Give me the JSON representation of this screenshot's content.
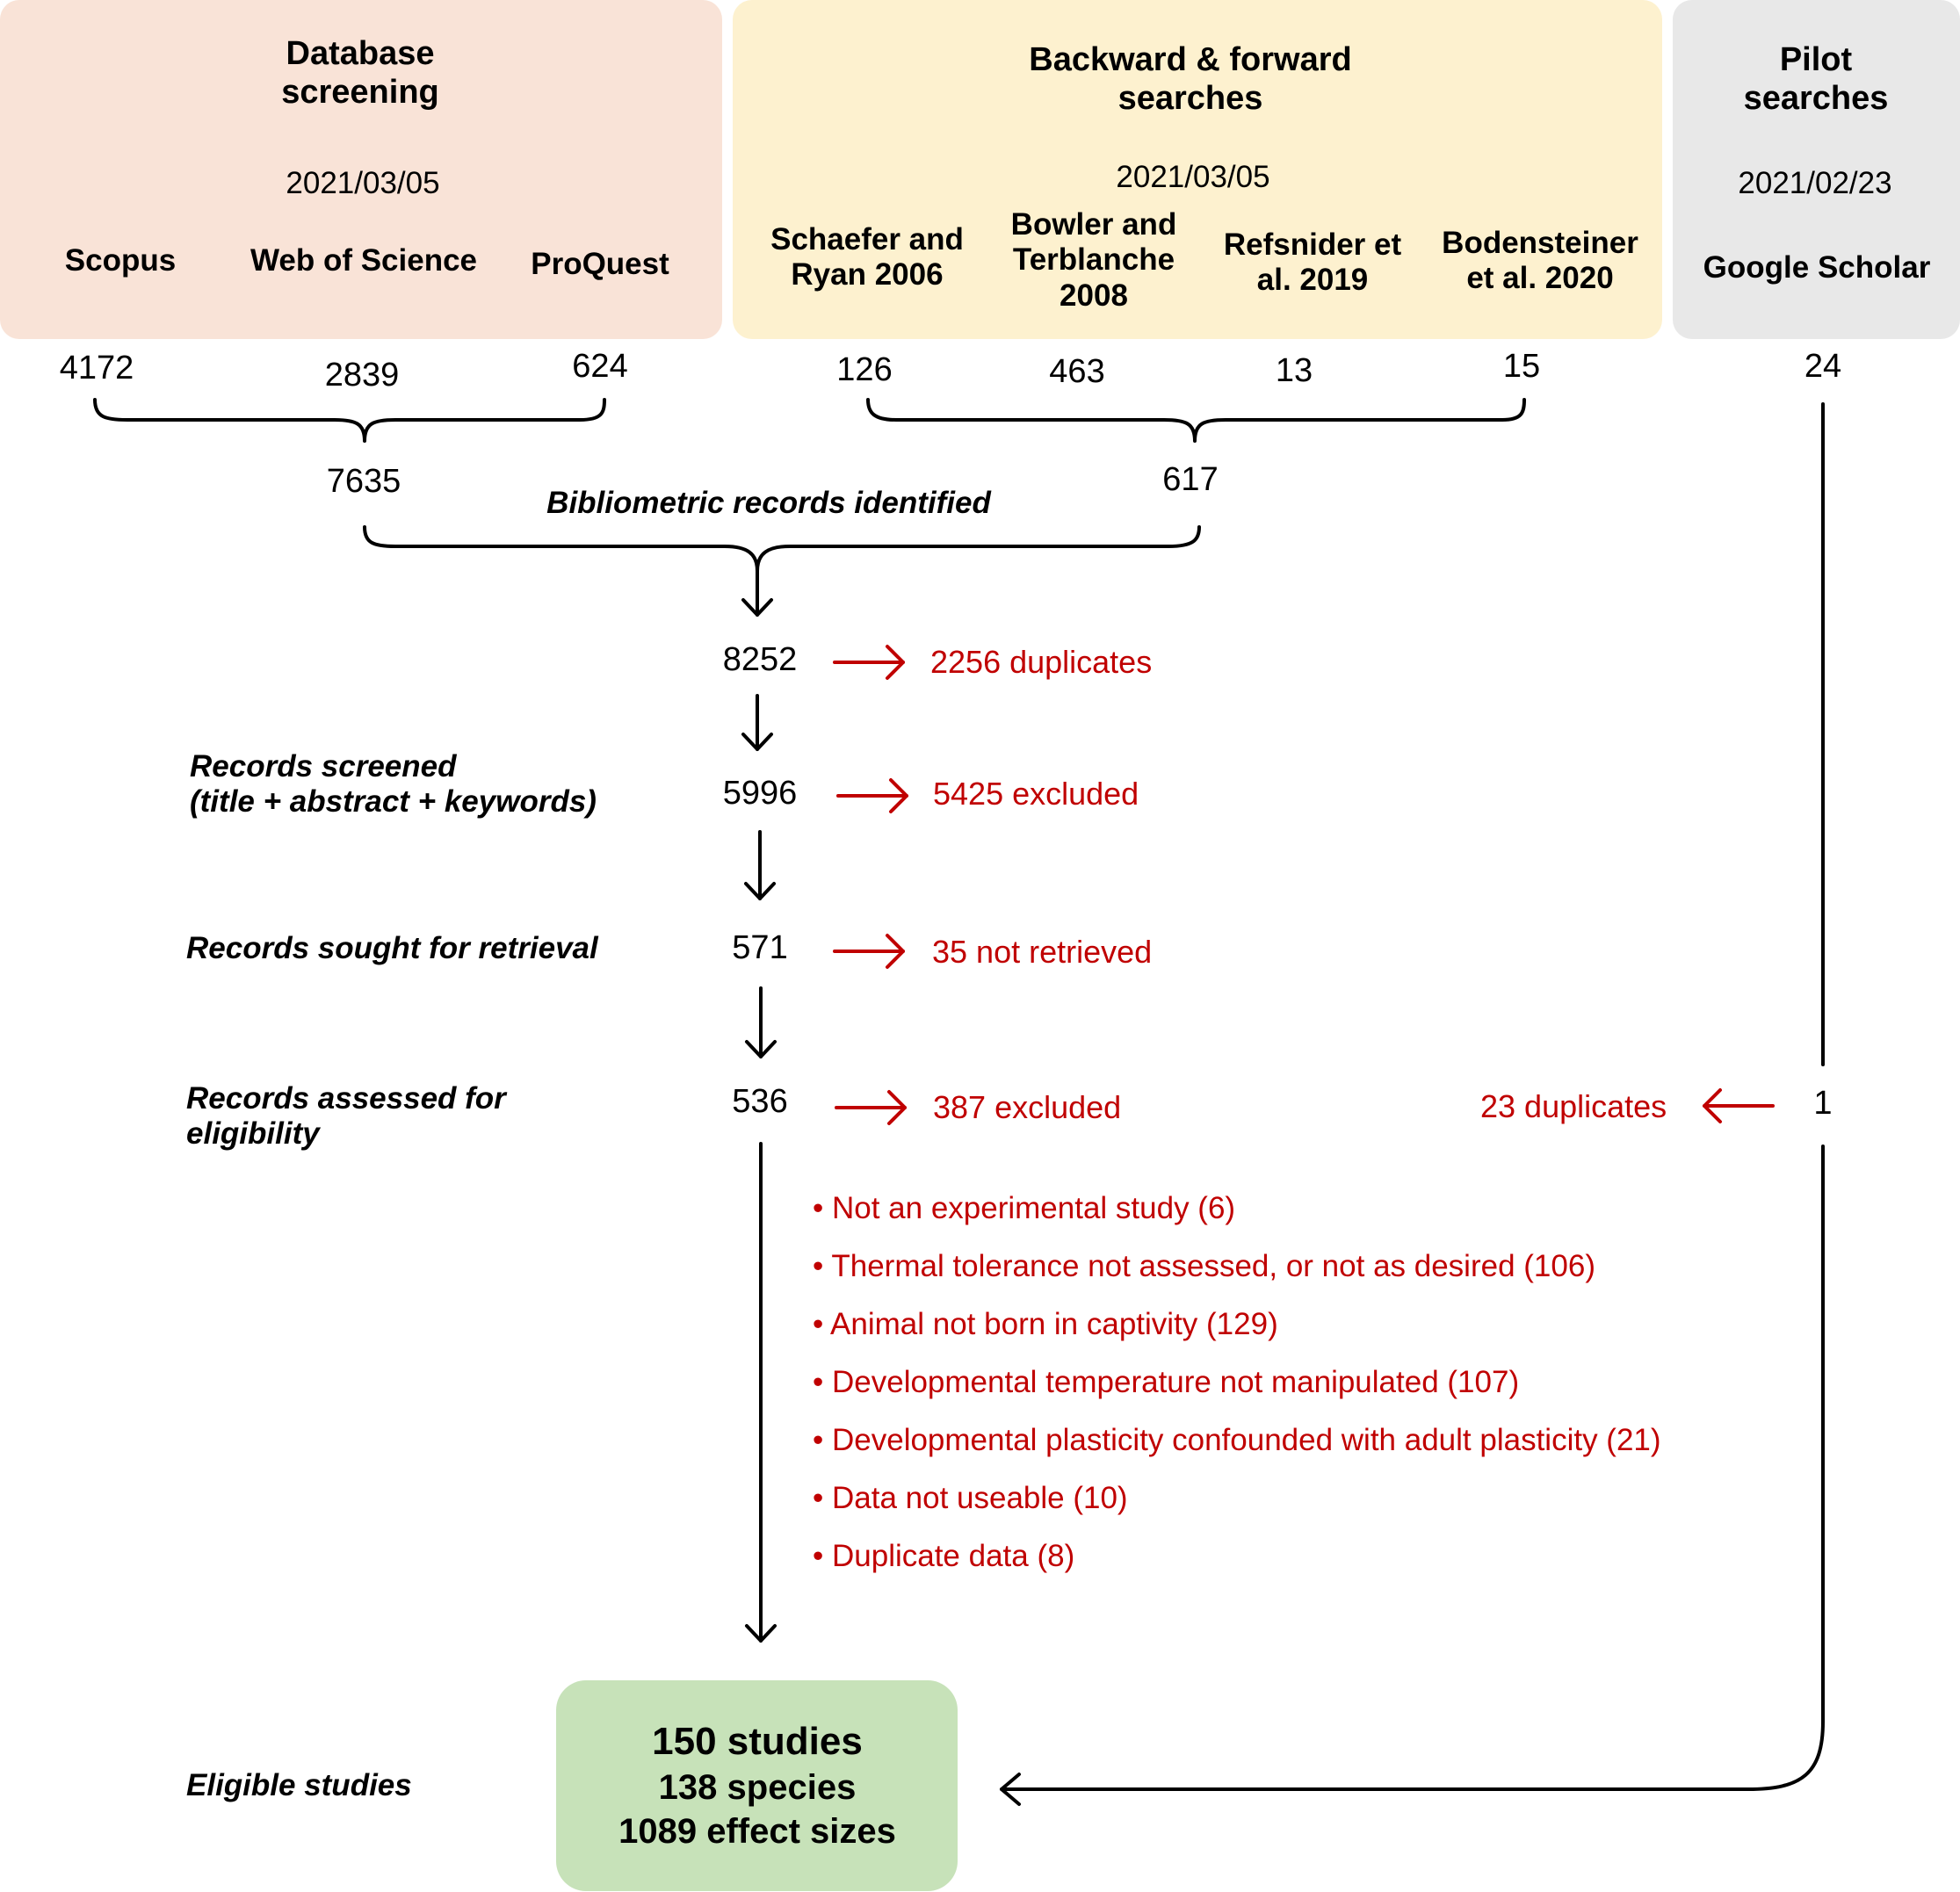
{
  "database": {
    "title": "Database screening",
    "title_line1": "Database",
    "title_line2": "screening",
    "date": "2021/03/05",
    "sources": [
      {
        "name": "Scopus",
        "count": "4172"
      },
      {
        "name": "Web of Science",
        "count": "2839"
      },
      {
        "name": "ProQuest",
        "count": "624"
      }
    ],
    "total": "7635"
  },
  "backward_forward": {
    "title": "Backward & forward searches",
    "title_line1": "Backward & forward",
    "title_line2": "searches",
    "date": "2021/03/05",
    "sources": [
      {
        "name": "Schaefer and Ryan 2006",
        "line1": "Schaefer and",
        "line2": "Ryan 2006",
        "count": "126"
      },
      {
        "name": "Bowler and Terblanche 2008",
        "line1": "Bowler and",
        "line2": "Terblanche",
        "line3": "2008",
        "count": "463"
      },
      {
        "name": "Refsnider et al. 2019",
        "line1": "Refsnider et",
        "line2": "al. 2019",
        "count": "13"
      },
      {
        "name": "Bodensteiner et al. 2020",
        "line1": "Bodensteiner",
        "line2": "et al. 2020",
        "count": "15"
      }
    ],
    "total": "617"
  },
  "pilot": {
    "title": "Pilot searches",
    "title_line1": "Pilot",
    "title_line2": "searches",
    "date": "2021/02/23",
    "source": "Google Scholar",
    "count": "24",
    "remaining": "1",
    "duplicates": "23 duplicates"
  },
  "flow": {
    "identified_label": "Bibliometric records identified",
    "identified": "8252",
    "duplicates": "2256 duplicates",
    "screened_label_line1": "Records screened",
    "screened_label_line2": "(title + abstract + keywords)",
    "screened": "5996",
    "screened_excluded": "5425 excluded",
    "retrieval_label": "Records sought for retrieval",
    "retrieval": "571",
    "not_retrieved": "35 not retrieved",
    "assessed_label_line1": "Records assessed for",
    "assessed_label_line2": "eligibility",
    "assessed": "536",
    "assessed_excluded": "387 excluded",
    "exclusion_reasons": [
      "Not an experimental study (6)",
      "Thermal tolerance not assessed, or not as desired (106)",
      "Animal not born in captivity (129)",
      "Developmental temperature not manipulated (107)",
      "Developmental plasticity confounded with adult plasticity (21)",
      "Data not useable (10)",
      "Duplicate data (8)"
    ],
    "eligible_label": "Eligible studies"
  },
  "result": {
    "studies": "150 studies",
    "species": "138 species",
    "effect_sizes": "1089 effect sizes"
  },
  "colors": {
    "database_box": "#f9e3d7",
    "backward_forward_box": "#fdf1cf",
    "pilot_box": "#e8e8e8",
    "result_box": "#c7e2b9",
    "exclusion_red": "#c00000"
  }
}
